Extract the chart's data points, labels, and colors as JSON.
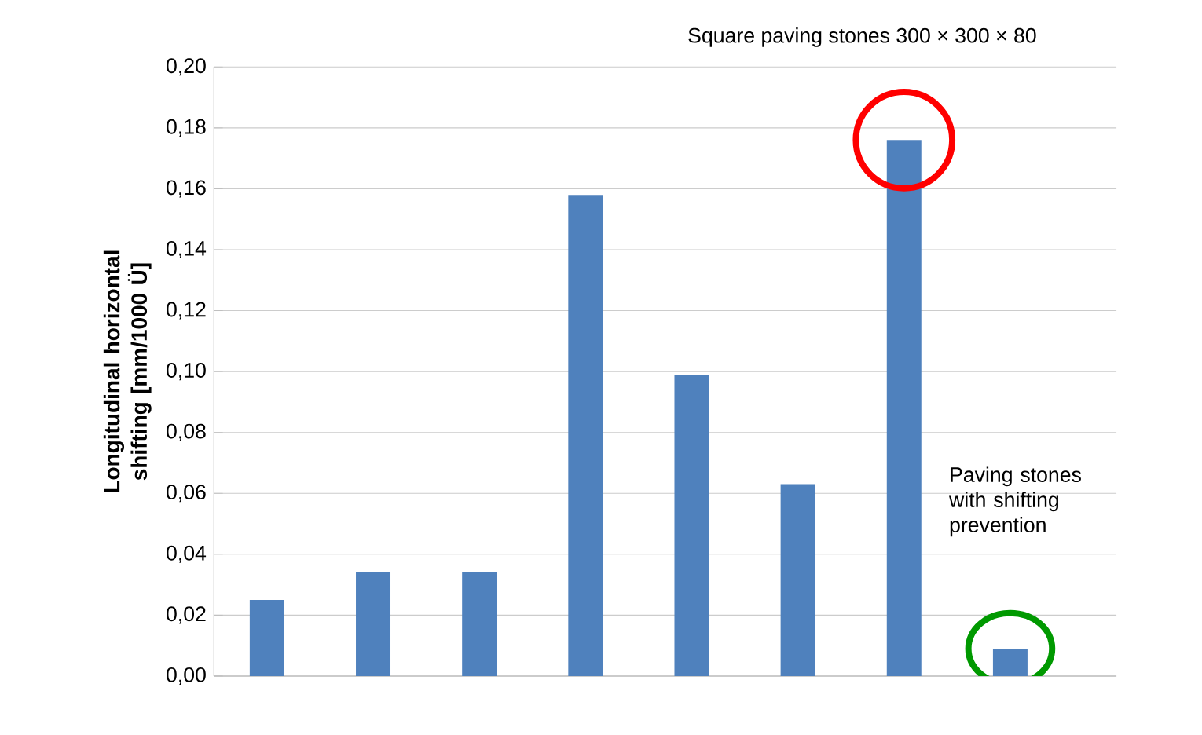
{
  "chart_data": {
    "type": "bar",
    "title": "Square paving stones  300 × 300 × 80",
    "ylabel": "Longitudinal horizontal shifting [mm/1000 Ü]",
    "categories": [
      null,
      null,
      null,
      null,
      null,
      null,
      null,
      null
    ],
    "values": [
      0.025,
      0.034,
      0.034,
      0.158,
      0.099,
      0.063,
      0.176,
      0.009
    ],
    "color": "#4f81bd",
    "ylim": [
      0,
      0.2
    ],
    "yticks": [
      {
        "value": 0,
        "label": "0,00"
      },
      {
        "value": 0.02,
        "label": "0,02"
      },
      {
        "value": 0.04,
        "label": "0,04"
      },
      {
        "value": 0.06,
        "label": "0,06"
      },
      {
        "value": 0.08,
        "label": "0,08"
      },
      {
        "value": 0.1,
        "label": "0,10"
      },
      {
        "value": 0.12,
        "label": "0,12"
      },
      {
        "value": 0.14,
        "label": "0,14"
      },
      {
        "value": 0.16,
        "label": "0,16"
      },
      {
        "value": 0.18,
        "label": "0,18"
      },
      {
        "value": 0.2,
        "label": "0,20"
      }
    ],
    "grid": "y",
    "tick_labels": "y",
    "annotations": [
      "Paving stones with shifting prevention"
    ]
  }
}
